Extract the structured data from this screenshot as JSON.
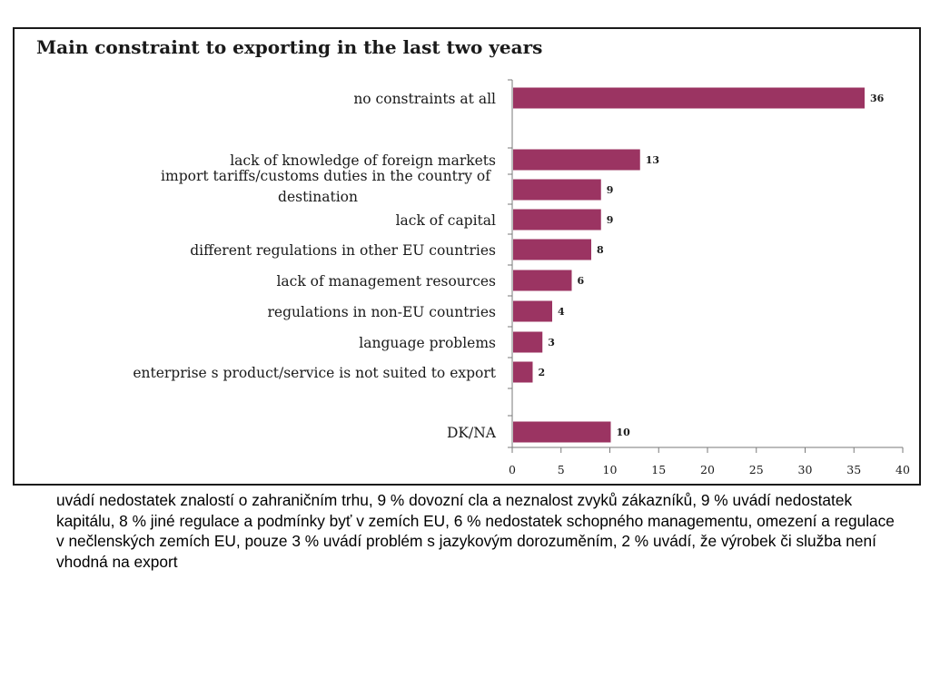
{
  "chart_data": {
    "type": "bar",
    "orientation": "horizontal",
    "title": "Main constraint to exporting in the last two years",
    "categories": [
      [
        "no constraints at all"
      ],
      [
        "lack of knowledge of foreign markets"
      ],
      [
        "import tariffs/customs duties in the country of",
        "destination"
      ],
      [
        "lack of capital"
      ],
      [
        "different regulations in other EU countries"
      ],
      [
        "lack of management resources"
      ],
      [
        "regulations in non-EU countries"
      ],
      [
        "language problems"
      ],
      [
        "enterprise s product/service is not suited to export"
      ],
      [
        "DK/NA"
      ]
    ],
    "values": [
      36,
      13,
      9,
      9,
      8,
      6,
      4,
      3,
      2,
      10
    ],
    "xlim": [
      0,
      40
    ],
    "xticks": [
      0,
      5,
      10,
      15,
      20,
      25,
      30,
      35,
      40
    ],
    "bar_color": "#9b3462",
    "grid": false,
    "legend": "none"
  },
  "caption": "uvádí nedostatek znalostí o zahraničním trhu, 9 % dovozní cla a neznalost zvyků zákazníků, 9 % uvádí nedostatek kapitálu, 8 % jiné regulace a podmínky byť v zemích EU, 6 % nedostatek schopného managementu, omezení a regulace v nečlenských zemích EU, pouze 3 % uvádí problém s jazykovým dorozuměním, 2 % uvádí, že výrobek či služba není vhodná na export"
}
